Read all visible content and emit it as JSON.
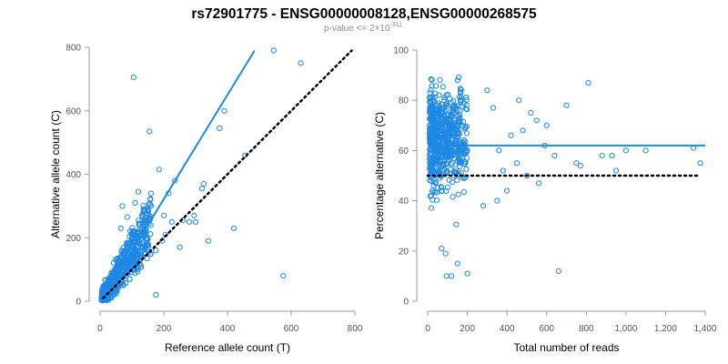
{
  "title_main": "rs72901775 - ENSG00000008128,ENSG00000268575",
  "subtitle_prefix": "p-value <= 2",
  "subtitle_times": "×",
  "subtitle_base": "10",
  "subtitle_exp": "-311",
  "colors": {
    "points": "#1e88e5",
    "fit_line": "#1e88e5",
    "reference_line": "#000000",
    "axis": "#9a9a9a"
  },
  "chart_data": [
    {
      "type": "scatter",
      "name": "allele-counts",
      "xlabel": "Reference allele count (T)",
      "ylabel": "Alternative allele count (C)",
      "xlim": [
        0,
        800
      ],
      "ylim": [
        0,
        800
      ],
      "xticks": [
        0,
        200,
        400,
        600,
        800
      ],
      "yticks": [
        0,
        200,
        400,
        600,
        800
      ],
      "xtick_labels": [
        "0",
        "200",
        "400",
        "600",
        "800"
      ],
      "ytick_labels": [
        "0",
        "200",
        "400",
        "600",
        "800"
      ],
      "fit_line": {
        "x": [
          10,
          485
        ],
        "y": [
          10,
          790
        ]
      },
      "reference_line": {
        "x": [
          10,
          790
        ],
        "y": [
          10,
          790
        ],
        "style": "dotted"
      },
      "cluster": {
        "n": 700,
        "x_range": [
          5,
          160
        ],
        "slope": 1.64
      },
      "points": [
        [
          105,
          705
        ],
        [
          545,
          790
        ],
        [
          630,
          750
        ],
        [
          575,
          80
        ],
        [
          390,
          600
        ],
        [
          155,
          535
        ],
        [
          375,
          545
        ],
        [
          455,
          460
        ],
        [
          325,
          370
        ],
        [
          320,
          355
        ],
        [
          340,
          190
        ],
        [
          185,
          415
        ],
        [
          235,
          380
        ],
        [
          260,
          255
        ],
        [
          295,
          270
        ],
        [
          205,
          210
        ],
        [
          175,
          20
        ],
        [
          215,
          340
        ],
        [
          140,
          255
        ],
        [
          110,
          310
        ],
        [
          120,
          345
        ],
        [
          70,
          300
        ],
        [
          65,
          230
        ],
        [
          85,
          265
        ],
        [
          150,
          195
        ],
        [
          195,
          190
        ],
        [
          225,
          250
        ],
        [
          250,
          170
        ],
        [
          280,
          250
        ],
        [
          420,
          230
        ],
        [
          200,
          270
        ],
        [
          160,
          300
        ],
        [
          130,
          230
        ],
        [
          300,
          250
        ],
        [
          175,
          160
        ],
        [
          135,
          170
        ]
      ]
    },
    {
      "type": "scatter",
      "name": "percentage-vs-reads",
      "xlabel": "Total number of reads",
      "ylabel": "Percentage alternative (C)",
      "xlim": [
        0,
        1400
      ],
      "ylim": [
        0,
        100
      ],
      "xticks": [
        0,
        200,
        400,
        600,
        800,
        1000,
        1200,
        1400
      ],
      "yticks": [
        0,
        20,
        40,
        60,
        80,
        100
      ],
      "xtick_labels": [
        "0",
        "200",
        "400",
        "600",
        "800",
        "1,000",
        "1,200",
        "1,400"
      ],
      "ytick_labels": [
        "0",
        "20",
        "40",
        "60",
        "80",
        "100"
      ],
      "fit_line": {
        "y": 62
      },
      "reference_line": {
        "y": 50,
        "style": "dotted"
      },
      "cluster": {
        "n": 650,
        "x_range": [
          10,
          200
        ],
        "center": 64
      },
      "points": [
        [
          810,
          87
        ],
        [
          660,
          12
        ],
        [
          1375,
          55
        ],
        [
          1340,
          61
        ],
        [
          1000,
          60
        ],
        [
          930,
          58
        ],
        [
          600,
          70
        ],
        [
          700,
          78
        ],
        [
          590,
          62
        ],
        [
          770,
          54
        ],
        [
          950,
          52
        ],
        [
          1100,
          60
        ],
        [
          750,
          55
        ],
        [
          880,
          58
        ],
        [
          460,
          80
        ],
        [
          520,
          75
        ],
        [
          480,
          68
        ],
        [
          550,
          72
        ],
        [
          420,
          66
        ],
        [
          400,
          44
        ],
        [
          350,
          40
        ],
        [
          380,
          52
        ],
        [
          500,
          50
        ],
        [
          450,
          55
        ],
        [
          300,
          84
        ],
        [
          330,
          77
        ],
        [
          280,
          38
        ],
        [
          360,
          60
        ],
        [
          640,
          58
        ],
        [
          560,
          47
        ],
        [
          95,
          10
        ],
        [
          120,
          10
        ],
        [
          200,
          11
        ],
        [
          150,
          15
        ],
        [
          90,
          19
        ],
        [
          70,
          21
        ]
      ]
    }
  ]
}
